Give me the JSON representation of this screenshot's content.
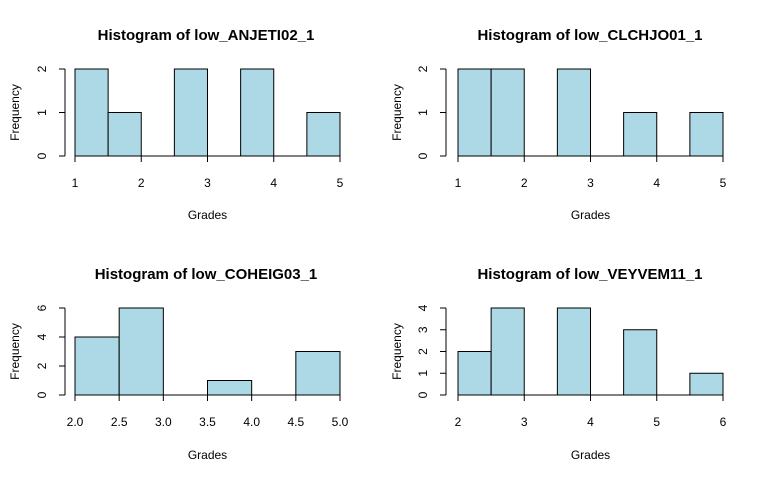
{
  "colors": {
    "bar_fill": "#add8e6",
    "bar_stroke": "#000000",
    "background": "#ffffff"
  },
  "chart_data": [
    {
      "type": "bar",
      "title": "Histogram of low_ANJETI02_1",
      "xlabel": "Grades",
      "ylabel": "Frequency",
      "bins": [
        [
          1.0,
          1.5
        ],
        [
          1.5,
          2.0
        ],
        [
          2.0,
          2.5
        ],
        [
          2.5,
          3.0
        ],
        [
          3.0,
          3.5
        ],
        [
          3.5,
          4.0
        ],
        [
          4.0,
          4.5
        ],
        [
          4.5,
          5.0
        ]
      ],
      "values": [
        2,
        1,
        0,
        2,
        0,
        2,
        0,
        1
      ],
      "xlim": [
        1,
        5
      ],
      "ylim": [
        0,
        2
      ],
      "xticks": [
        "1",
        "2",
        "3",
        "4",
        "5"
      ],
      "yticks": [
        "0",
        "1",
        "2"
      ]
    },
    {
      "type": "bar",
      "title": "Histogram of low_CLCHJO01_1",
      "xlabel": "Grades",
      "ylabel": "Frequency",
      "bins": [
        [
          1.0,
          1.5
        ],
        [
          1.5,
          2.0
        ],
        [
          2.0,
          2.5
        ],
        [
          2.5,
          3.0
        ],
        [
          3.0,
          3.5
        ],
        [
          3.5,
          4.0
        ],
        [
          4.0,
          4.5
        ],
        [
          4.5,
          5.0
        ]
      ],
      "values": [
        2,
        2,
        0,
        2,
        0,
        1,
        0,
        1
      ],
      "xlim": [
        1,
        5
      ],
      "ylim": [
        0,
        2
      ],
      "xticks": [
        "1",
        "2",
        "3",
        "4",
        "5"
      ],
      "yticks": [
        "0",
        "1",
        "2"
      ]
    },
    {
      "type": "bar",
      "title": "Histogram of low_COHEIG03_1",
      "xlabel": "Grades",
      "ylabel": "Frequency",
      "bins": [
        [
          2.0,
          2.5
        ],
        [
          2.5,
          3.0
        ],
        [
          3.0,
          3.5
        ],
        [
          3.5,
          4.0
        ],
        [
          4.0,
          4.5
        ],
        [
          4.5,
          5.0
        ]
      ],
      "values": [
        4,
        6,
        0,
        1,
        0,
        3
      ],
      "xlim": [
        2,
        5
      ],
      "ylim": [
        0,
        6
      ],
      "xticks": [
        "2.0",
        "2.5",
        "3.0",
        "3.5",
        "4.0",
        "4.5",
        "5.0"
      ],
      "yticks": [
        "0",
        "2",
        "4",
        "6"
      ]
    },
    {
      "type": "bar",
      "title": "Histogram of low_VEYVEM11_1",
      "xlabel": "Grades",
      "ylabel": "Frequency",
      "bins": [
        [
          2.0,
          2.5
        ],
        [
          2.5,
          3.0
        ],
        [
          3.0,
          3.5
        ],
        [
          3.5,
          4.0
        ],
        [
          4.0,
          4.5
        ],
        [
          4.5,
          5.0
        ],
        [
          5.0,
          5.5
        ],
        [
          5.5,
          6.0
        ]
      ],
      "values": [
        2,
        4,
        0,
        4,
        0,
        3,
        0,
        1
      ],
      "xlim": [
        2,
        6
      ],
      "ylim": [
        0,
        4
      ],
      "xticks": [
        "2",
        "3",
        "4",
        "5",
        "6"
      ],
      "yticks": [
        "0",
        "1",
        "2",
        "3",
        "4"
      ]
    }
  ]
}
